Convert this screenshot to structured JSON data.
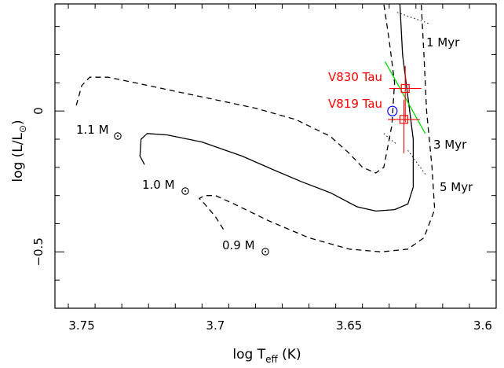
{
  "chart_data": {
    "type": "line",
    "xlabel": {
      "main": "log T",
      "sub": "eff",
      "unit": " (K)"
    },
    "ylabel": {
      "main": "log (L/L",
      "sub": "⊙",
      "close": ")"
    },
    "xlim": [
      3.76,
      3.595
    ],
    "ylim": [
      -0.7,
      0.38
    ],
    "x_ticks": [
      3.75,
      3.7,
      3.65,
      3.6
    ],
    "x_tick_labels": [
      "3.75",
      "3.7",
      "3.65",
      "3.6"
    ],
    "y_ticks": [
      0,
      -0.5
    ],
    "y_tick_labels": [
      "0",
      "−0.5"
    ],
    "tracks": [
      {
        "mass_label": "1.1 M",
        "style": "dashed",
        "points": [
          [
            3.752,
            0.02
          ],
          [
            3.75,
            0.09
          ],
          [
            3.747,
            0.12
          ],
          [
            3.74,
            0.12
          ],
          [
            3.73,
            0.1
          ],
          [
            3.715,
            0.07
          ],
          [
            3.7,
            0.04
          ],
          [
            3.685,
            0.01
          ],
          [
            3.67,
            -0.03
          ],
          [
            3.657,
            -0.09
          ],
          [
            3.65,
            -0.15
          ],
          [
            3.645,
            -0.2
          ],
          [
            3.64,
            -0.22
          ],
          [
            3.637,
            -0.2
          ],
          [
            3.634,
            -0.05
          ],
          [
            3.633,
            0.1
          ],
          [
            3.635,
            0.25
          ],
          [
            3.637,
            0.38
          ]
        ]
      },
      {
        "mass_label": "1.0 M",
        "style": "solid",
        "points": [
          [
            3.7265,
            -0.19
          ],
          [
            3.7282,
            -0.16
          ],
          [
            3.7278,
            -0.1
          ],
          [
            3.7255,
            -0.08
          ],
          [
            3.718,
            -0.085
          ],
          [
            3.705,
            -0.11
          ],
          [
            3.69,
            -0.16
          ],
          [
            3.678,
            -0.21
          ],
          [
            3.668,
            -0.25
          ],
          [
            3.657,
            -0.29
          ],
          [
            3.647,
            -0.34
          ],
          [
            3.64,
            -0.355
          ],
          [
            3.633,
            -0.35
          ],
          [
            3.628,
            -0.33
          ],
          [
            3.626,
            -0.27
          ],
          [
            3.626,
            -0.1
          ],
          [
            3.628,
            0.05
          ],
          [
            3.63,
            0.2
          ],
          [
            3.631,
            0.38
          ]
        ]
      },
      {
        "mass_label": "0.9 M",
        "style": "dashed",
        "points": [
          [
            3.697,
            -0.42
          ],
          [
            3.7,
            -0.375
          ],
          [
            3.704,
            -0.33
          ],
          [
            3.706,
            -0.31
          ],
          [
            3.704,
            -0.3
          ],
          [
            3.7,
            -0.3
          ],
          [
            3.693,
            -0.33
          ],
          [
            3.68,
            -0.39
          ],
          [
            3.665,
            -0.45
          ],
          [
            3.65,
            -0.49
          ],
          [
            3.638,
            -0.5
          ],
          [
            3.628,
            -0.49
          ],
          [
            3.622,
            -0.45
          ],
          [
            3.618,
            -0.35
          ],
          [
            3.619,
            -0.2
          ],
          [
            3.621,
            0.0
          ],
          [
            3.622,
            0.2
          ],
          [
            3.623,
            0.38
          ]
        ]
      }
    ],
    "isochrones": [
      {
        "label": "1 Myr",
        "points": [
          [
            3.632,
            0.35
          ],
          [
            3.62,
            0.31
          ]
        ]
      },
      {
        "label": "3 Myr",
        "points": [
          [
            3.637,
            -0.08
          ],
          [
            3.632,
            -0.12
          ]
        ]
      },
      {
        "label": "5 Myr",
        "points": [
          [
            3.628,
            -0.14
          ],
          [
            3.621,
            -0.23
          ]
        ]
      }
    ],
    "stars": [
      {
        "name": "V830 Tau",
        "logT": 3.629,
        "logL": 0.08,
        "err_logT": 0.006,
        "err_logL_up": 0.08,
        "err_logL_down": 0.12
      },
      {
        "name": "V819 Tau",
        "logT": 3.6295,
        "logL": -0.03,
        "err_logT": 0.006,
        "err_logL_up": 0.07,
        "err_logL_down": 0.12
      }
    ],
    "star_color": "#ff0000",
    "green_line": {
      "color": "#00dd00",
      "points": [
        [
          3.6365,
          0.175
        ],
        [
          3.6215,
          -0.08
        ]
      ]
    },
    "blue_circle": {
      "color": "#0000ff",
      "logT": 3.6338,
      "logL": 0.0
    },
    "colors": {
      "axis": "#000000",
      "track": "#000000",
      "isochrone": "#000000"
    }
  }
}
